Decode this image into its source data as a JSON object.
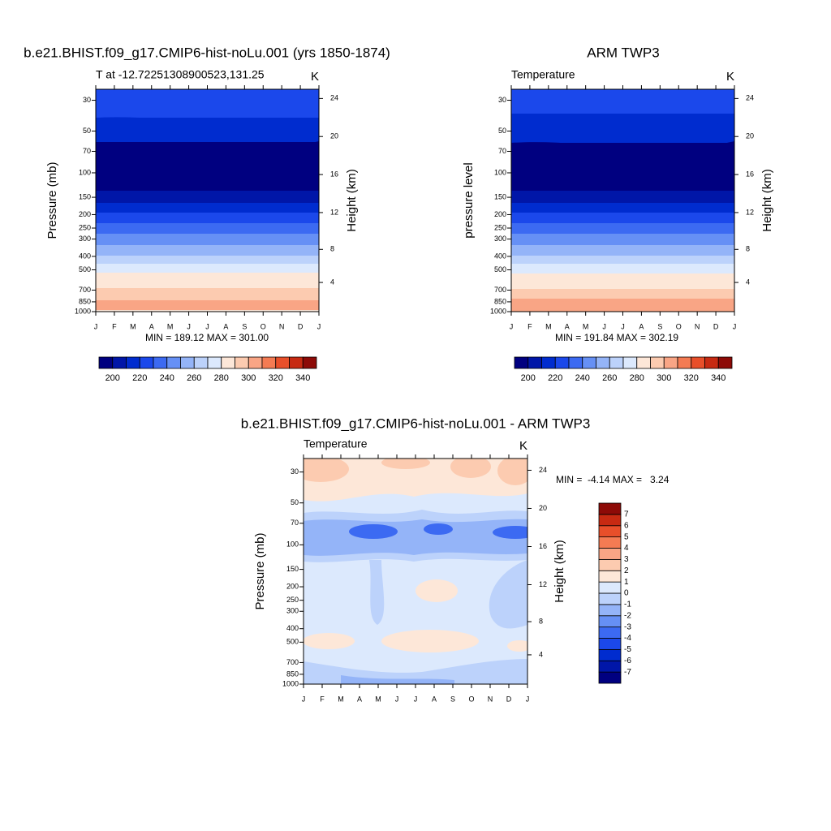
{
  "chart_data": [
    {
      "type": "contour",
      "title": "b.e21.BHIST.f09_g17.CMIP6-hist-noLu.001 (yrs 1850-1874)",
      "subtitle_left": "T at -12.72251308900523,131.25",
      "subtitle_right": "K",
      "ylabel": "Pressure (mb)",
      "y2label": "Height (km)",
      "categories": [
        "J",
        "F",
        "M",
        "A",
        "M",
        "J",
        "J",
        "A",
        "S",
        "O",
        "N",
        "D",
        "J"
      ],
      "ylog": true,
      "ylim": [
        1000,
        25
      ],
      "yticks": [
        30,
        50,
        70,
        100,
        150,
        200,
        250,
        300,
        400,
        500,
        700,
        850,
        1000
      ],
      "y2lim": [
        0.1,
        25
      ],
      "y2ticks": [
        4,
        8,
        12,
        16,
        20,
        24
      ],
      "stats_label": "MIN = 189.12 MAX = 301.00",
      "colorbar": {
        "orientation": "horizontal",
        "lim": [
          190,
          350
        ],
        "ticks": [
          200,
          220,
          240,
          260,
          280,
          300,
          320,
          340
        ],
        "colors": [
          "#000080",
          "#0016a8",
          "#002ccf",
          "#1b48eb",
          "#3c6af2",
          "#6690f5",
          "#94b4f8",
          "#bcd2fb",
          "#dce9fd",
          "#fde7d8",
          "#fccbb0",
          "#f9a585",
          "#f47b53",
          "#e84f2a",
          "#c72a12",
          "#8d0a07"
        ]
      }
    },
    {
      "type": "contour",
      "title": "ARM TWP3",
      "subtitle_left": "Temperature",
      "subtitle_right": "K",
      "ylabel": "pressure level",
      "y2label": "Height (km)",
      "categories": [
        "J",
        "F",
        "M",
        "A",
        "M",
        "J",
        "J",
        "A",
        "S",
        "O",
        "N",
        "D",
        "J"
      ],
      "ylog": true,
      "ylim": [
        1000,
        25
      ],
      "yticks": [
        30,
        50,
        70,
        100,
        150,
        200,
        250,
        300,
        400,
        500,
        700,
        850,
        1000
      ],
      "y2lim": [
        0.1,
        25
      ],
      "y2ticks": [
        4,
        8,
        12,
        16,
        20,
        24
      ],
      "stats_label": "MIN = 191.84 MAX = 302.19",
      "colorbar": {
        "orientation": "horizontal",
        "lim": [
          190,
          350
        ],
        "ticks": [
          200,
          220,
          240,
          260,
          280,
          300,
          320,
          340
        ],
        "colors": [
          "#000080",
          "#0016a8",
          "#002ccf",
          "#1b48eb",
          "#3c6af2",
          "#6690f5",
          "#94b4f8",
          "#bcd2fb",
          "#dce9fd",
          "#fde7d8",
          "#fccbb0",
          "#f9a585",
          "#f47b53",
          "#e84f2a",
          "#c72a12",
          "#8d0a07"
        ]
      }
    },
    {
      "type": "contour",
      "title": "b.e21.BHIST.f09_g17.CMIP6-hist-noLu.001 - ARM TWP3",
      "subtitle_left": "Temperature",
      "subtitle_right": "K",
      "ylabel": "Pressure (mb)",
      "y2label": "Height (km)",
      "categories": [
        "J",
        "F",
        "M",
        "A",
        "M",
        "J",
        "J",
        "A",
        "S",
        "O",
        "N",
        "D",
        "J"
      ],
      "ylog": true,
      "ylim": [
        1000,
        24
      ],
      "yticks": [
        30,
        50,
        70,
        100,
        150,
        200,
        250,
        300,
        400,
        500,
        700,
        850,
        1000
      ],
      "y2lim": [
        0.1,
        25
      ],
      "y2ticks": [
        4,
        8,
        12,
        16,
        20,
        24
      ],
      "stats_label": "MIN =  -4.14 MAX =   3.24",
      "colorbar": {
        "orientation": "vertical",
        "lim": [
          -8,
          8
        ],
        "ticks": [
          -7,
          -6,
          -5,
          -4,
          -3,
          -2,
          -1,
          0,
          1,
          2,
          3,
          4,
          5,
          6,
          7
        ],
        "colors": [
          "#000080",
          "#0016a8",
          "#002ccf",
          "#1b48eb",
          "#3c6af2",
          "#6690f5",
          "#94b4f8",
          "#bcd2fb",
          "#dce9fd",
          "#fde7d8",
          "#fccbb0",
          "#f9a585",
          "#f47b53",
          "#e84f2a",
          "#c72a12",
          "#8d0a07"
        ]
      }
    }
  ]
}
